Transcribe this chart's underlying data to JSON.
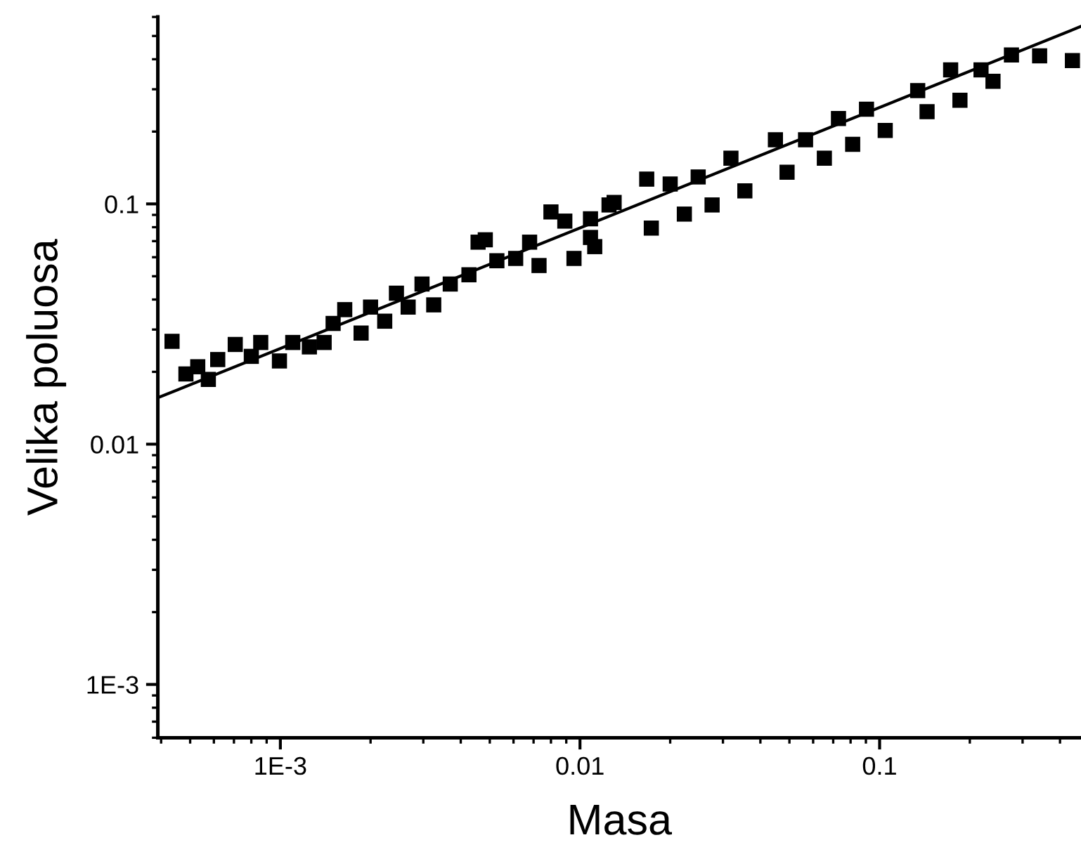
{
  "chart_data": {
    "type": "scatter",
    "xlabel": "Masa",
    "ylabel": "Velika poluosa",
    "log": "xy",
    "grid": false,
    "legend": false,
    "xlim": [
      0.00039,
      0.47
    ],
    "ylim": [
      0.0006,
      0.6
    ],
    "xticks": [
      {
        "value": 0.001,
        "label": "1E-3"
      },
      0.01,
      0.1
    ],
    "yticks": [
      {
        "value": 0.001,
        "label": "1E-3"
      },
      0.01,
      0.1
    ],
    "series": [
      {
        "marker": "square",
        "color": "#000000",
        "x": [
          0.000435,
          0.000484,
          0.00053,
          0.000575,
          0.000618,
          0.000707,
          0.0008,
          0.00086,
          0.000993,
          0.0011,
          0.00125,
          0.0014,
          0.0015,
          0.00164,
          0.00186,
          0.002,
          0.00223,
          0.00244,
          0.00267,
          0.00297,
          0.00325,
          0.00369,
          0.00426,
          0.00457,
          0.00483,
          0.00528,
          0.0061,
          0.00679,
          0.0073,
          0.008,
          0.0089,
          0.00955,
          0.01084,
          0.0125,
          0.01084,
          0.0112,
          0.013,
          0.0167,
          0.0173,
          0.02,
          0.0223,
          0.0248,
          0.0276,
          0.0319,
          0.0355,
          0.0449,
          0.0491,
          0.0566,
          0.0654,
          0.0729,
          0.0813,
          0.0904,
          0.1044,
          0.134,
          0.144,
          0.1726,
          0.1854,
          0.218,
          0.239,
          0.2754,
          0.342,
          0.44
        ],
        "values": [
          0.0268,
          0.0196,
          0.021,
          0.0186,
          0.0225,
          0.026,
          0.0232,
          0.0265,
          0.0222,
          0.0265,
          0.0254,
          0.0265,
          0.0318,
          0.0363,
          0.029,
          0.0372,
          0.0325,
          0.0425,
          0.0372,
          0.0464,
          0.038,
          0.0464,
          0.0507,
          0.0693,
          0.0709,
          0.058,
          0.0593,
          0.0693,
          0.0554,
          0.0926,
          0.0848,
          0.0593,
          0.0725,
          0.099,
          0.0867,
          0.0664,
          0.1014,
          0.1268,
          0.0793,
          0.121,
          0.0907,
          0.1295,
          0.099,
          0.155,
          0.1133,
          0.185,
          0.1355,
          0.185,
          0.155,
          0.2265,
          0.177,
          0.2477,
          0.2023,
          0.296,
          0.242,
          0.361,
          0.27,
          0.361,
          0.3236,
          0.417,
          0.413,
          0.395
        ]
      },
      {
        "type": "line",
        "marker": "none",
        "color": "#000000",
        "x": [
          0.00039,
          0.47
        ],
        "values": [
          0.0156,
          0.548
        ]
      }
    ]
  }
}
